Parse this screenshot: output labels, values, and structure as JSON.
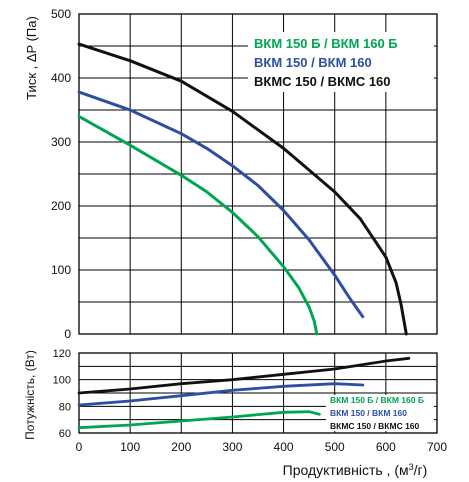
{
  "chart_data": [
    {
      "type": "line",
      "ylabel": "Тиск , ΔP (Па)",
      "ylim": [
        0,
        500
      ],
      "xlim": [
        0,
        700
      ],
      "y_ticks": [
        0,
        100,
        200,
        300,
        400,
        500
      ],
      "grid": true,
      "legend_position": "top-right",
      "series": [
        {
          "name": "ВКМ 150 Б / ВКМ 160 Б",
          "color": "#00a651",
          "points": [
            [
              0,
              340
            ],
            [
              100,
              295
            ],
            [
              200,
              248
            ],
            [
              250,
              222
            ],
            [
              300,
              190
            ],
            [
              350,
              152
            ],
            [
              400,
              105
            ],
            [
              430,
              72
            ],
            [
              450,
              42
            ],
            [
              460,
              20
            ],
            [
              465,
              0
            ]
          ]
        },
        {
          "name": "ВКМ 150 / ВКМ 160",
          "color": "#2e4fa1",
          "points": [
            [
              0,
              378
            ],
            [
              100,
              350
            ],
            [
              200,
              313
            ],
            [
              250,
              290
            ],
            [
              300,
              263
            ],
            [
              350,
              232
            ],
            [
              400,
              193
            ],
            [
              450,
              147
            ],
            [
              500,
              92
            ],
            [
              530,
              55
            ],
            [
              555,
              27
            ]
          ]
        },
        {
          "name": "ВКМС 150 / ВКМС 160",
          "color": "#111111",
          "points": [
            [
              0,
              453
            ],
            [
              100,
              427
            ],
            [
              200,
              395
            ],
            [
              300,
              348
            ],
            [
              400,
              290
            ],
            [
              500,
              222
            ],
            [
              550,
              180
            ],
            [
              600,
              120
            ],
            [
              620,
              80
            ],
            [
              630,
              45
            ],
            [
              640,
              0
            ]
          ]
        }
      ]
    },
    {
      "type": "line",
      "xlabel": "Продуктивність , (м³/г)",
      "ylabel": "Потужність, (Вт)",
      "ylim": [
        60,
        120
      ],
      "xlim": [
        0,
        700
      ],
      "x_ticks": [
        0,
        100,
        200,
        300,
        400,
        500,
        600,
        700
      ],
      "y_ticks": [
        60,
        80,
        100,
        120
      ],
      "grid": true,
      "legend_position": "bottom-right",
      "series": [
        {
          "name": "ВКМ 150 Б / ВКМ 160 Б",
          "color": "#00a651",
          "points": [
            [
              0,
              64
            ],
            [
              100,
              66
            ],
            [
              200,
              69
            ],
            [
              300,
              72
            ],
            [
              400,
              75.5
            ],
            [
              450,
              76
            ],
            [
              470,
              74
            ]
          ]
        },
        {
          "name": "ВКМ 150 / ВКМ 160",
          "color": "#2e4fa1",
          "points": [
            [
              0,
              81
            ],
            [
              100,
              84
            ],
            [
              200,
              88
            ],
            [
              300,
              92
            ],
            [
              400,
              95
            ],
            [
              500,
              97
            ],
            [
              555,
              96
            ]
          ]
        },
        {
          "name": "ВКМС 150 / ВКМС 160",
          "color": "#111111",
          "points": [
            [
              0,
              90
            ],
            [
              100,
              93
            ],
            [
              200,
              97
            ],
            [
              300,
              100
            ],
            [
              400,
              104
            ],
            [
              500,
              108
            ],
            [
              600,
              114
            ],
            [
              645,
              116
            ]
          ]
        }
      ]
    }
  ]
}
